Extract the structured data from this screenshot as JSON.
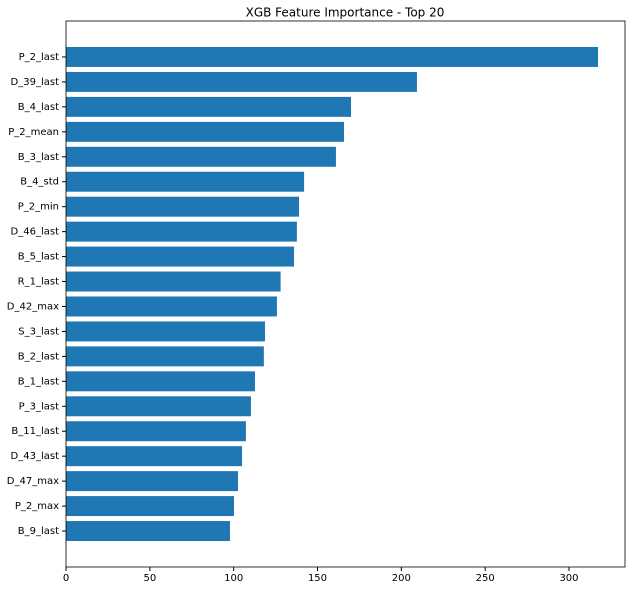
{
  "chart_data": {
    "type": "barh",
    "title": "XGB Feature Importance - Top 20",
    "categories": [
      "P_2_last",
      "D_39_last",
      "B_4_last",
      "P_2_mean",
      "B_3_last",
      "B_4_std",
      "P_2_min",
      "D_46_last",
      "B_5_last",
      "R_1_last",
      "D_42_max",
      "S_3_last",
      "B_2_last",
      "B_1_last",
      "P_3_last",
      "B_11_last",
      "D_43_last",
      "D_47_max",
      "P_2_max",
      "B_9_last"
    ],
    "values": [
      317.3,
      209.3,
      170,
      165.8,
      161,
      142,
      139,
      137.7,
      136,
      128,
      125.8,
      118.7,
      118,
      112.7,
      110.3,
      107.3,
      105,
      102.6,
      100.2,
      97.8
    ],
    "color": "#1f77b4",
    "xlim": [
      0,
      333.4
    ],
    "xticks": [
      0,
      50,
      100,
      150,
      200,
      250,
      300
    ],
    "grid": false
  }
}
